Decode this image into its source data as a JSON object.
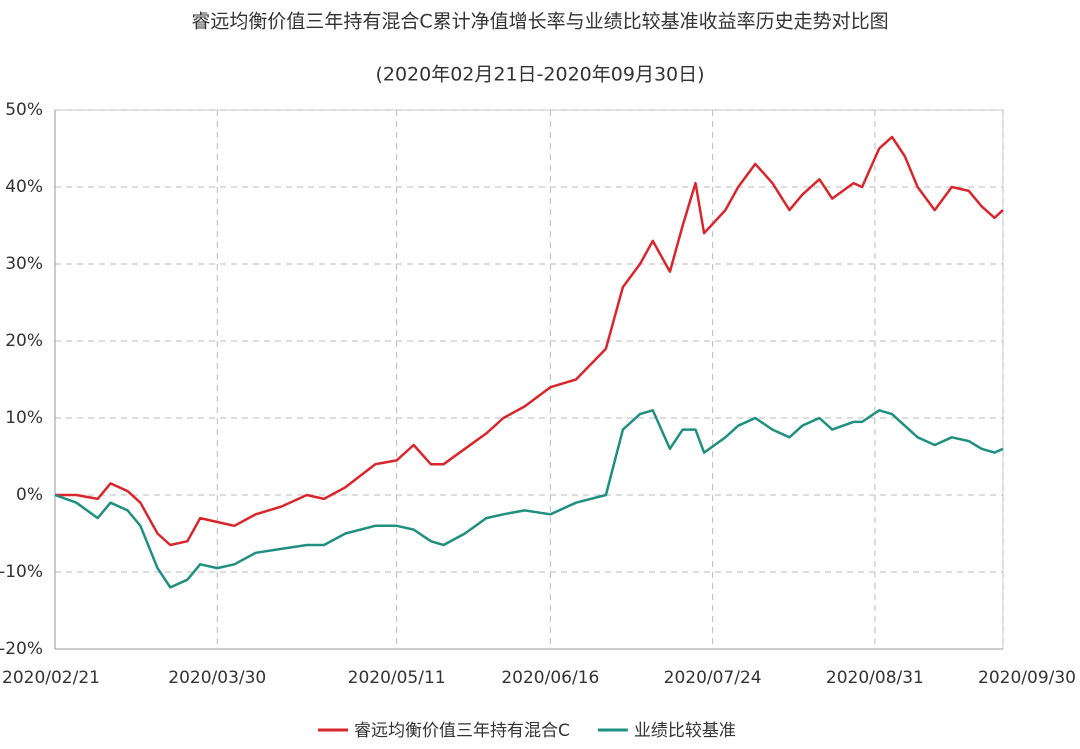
{
  "chart_data": {
    "type": "line",
    "title": "睿远均衡价值三年持有混合C累计净值增长率与业绩比较基准收益率历史走势对比图",
    "subtitle": "(2020年02月21日-2020年09月30日)",
    "x": [
      "2020/02/21",
      "2020/02/26",
      "2020/03/02",
      "2020/03/05",
      "2020/03/09",
      "2020/03/12",
      "2020/03/16",
      "2020/03/19",
      "2020/03/23",
      "2020/03/26",
      "2020/03/30",
      "2020/04/03",
      "2020/04/08",
      "2020/04/14",
      "2020/04/20",
      "2020/04/24",
      "2020/04/29",
      "2020/05/06",
      "2020/05/11",
      "2020/05/15",
      "2020/05/19",
      "2020/05/22",
      "2020/05/27",
      "2020/06/01",
      "2020/06/05",
      "2020/06/10",
      "2020/06/16",
      "2020/06/22",
      "2020/06/29",
      "2020/07/03",
      "2020/07/07",
      "2020/07/10",
      "2020/07/14",
      "2020/07/17",
      "2020/07/20",
      "2020/07/22",
      "2020/07/27",
      "2020/07/30",
      "2020/08/03",
      "2020/08/07",
      "2020/08/11",
      "2020/08/14",
      "2020/08/18",
      "2020/08/21",
      "2020/08/26",
      "2020/08/28",
      "2020/09/01",
      "2020/09/04",
      "2020/09/07",
      "2020/09/10",
      "2020/09/14",
      "2020/09/18",
      "2020/09/22",
      "2020/09/25",
      "2020/09/28",
      "2020/09/30"
    ],
    "series": [
      {
        "name": "睿远均衡价值三年持有混合C",
        "color": "#d9262c",
        "values": [
          0,
          0,
          -0.5,
          1.5,
          0.5,
          -1,
          -5,
          -6.5,
          -6,
          -3,
          -3.5,
          -4,
          -2.5,
          -1.5,
          0,
          -0.5,
          1,
          4,
          4.5,
          6.5,
          4,
          4,
          6,
          8,
          10,
          11.5,
          14,
          15,
          19,
          27,
          30,
          33,
          29,
          35,
          40.5,
          34,
          37,
          40,
          43,
          40.5,
          37,
          39,
          41,
          38.5,
          40.5,
          40,
          45,
          46.5,
          44,
          40,
          37,
          40,
          39.5,
          37.5,
          36,
          37
        ]
      },
      {
        "name": "业绩比较基准",
        "color": "#1f9080",
        "values": [
          0,
          -1,
          -3,
          -1,
          -2,
          -4,
          -9.5,
          -12,
          -11,
          -9,
          -9.5,
          -9,
          -7.5,
          -7,
          -6.5,
          -6.5,
          -5,
          -4,
          -4,
          -4.5,
          -6,
          -6.5,
          -5,
          -3,
          -2.5,
          -2,
          -2.5,
          -1,
          0,
          8.5,
          10.5,
          11,
          6,
          8.5,
          8.5,
          5.5,
          7.5,
          9,
          10,
          8.5,
          7.5,
          9,
          10,
          8.5,
          9.5,
          9.5,
          11,
          10.5,
          9,
          7.5,
          6.5,
          7.5,
          7,
          6,
          5.5,
          6
        ]
      }
    ],
    "xlim": [
      "2020/02/21",
      "2020/09/30"
    ],
    "xticks": [
      "2020/02/21",
      "2020/03/30",
      "2020/05/11",
      "2020/06/16",
      "2020/07/24",
      "2020/08/31",
      "2020/09/30"
    ],
    "ylim": [
      -20,
      50
    ],
    "yticks": [
      {
        "value": -20,
        "label": "-20%"
      },
      {
        "value": -10,
        "label": "-10%"
      },
      {
        "value": 0,
        "label": "0%"
      },
      {
        "value": 10,
        "label": "10%"
      },
      {
        "value": 20,
        "label": "20%"
      },
      {
        "value": 30,
        "label": "30%"
      },
      {
        "value": 40,
        "label": "40%"
      },
      {
        "value": 50,
        "label": "50%"
      }
    ],
    "grid": true
  }
}
